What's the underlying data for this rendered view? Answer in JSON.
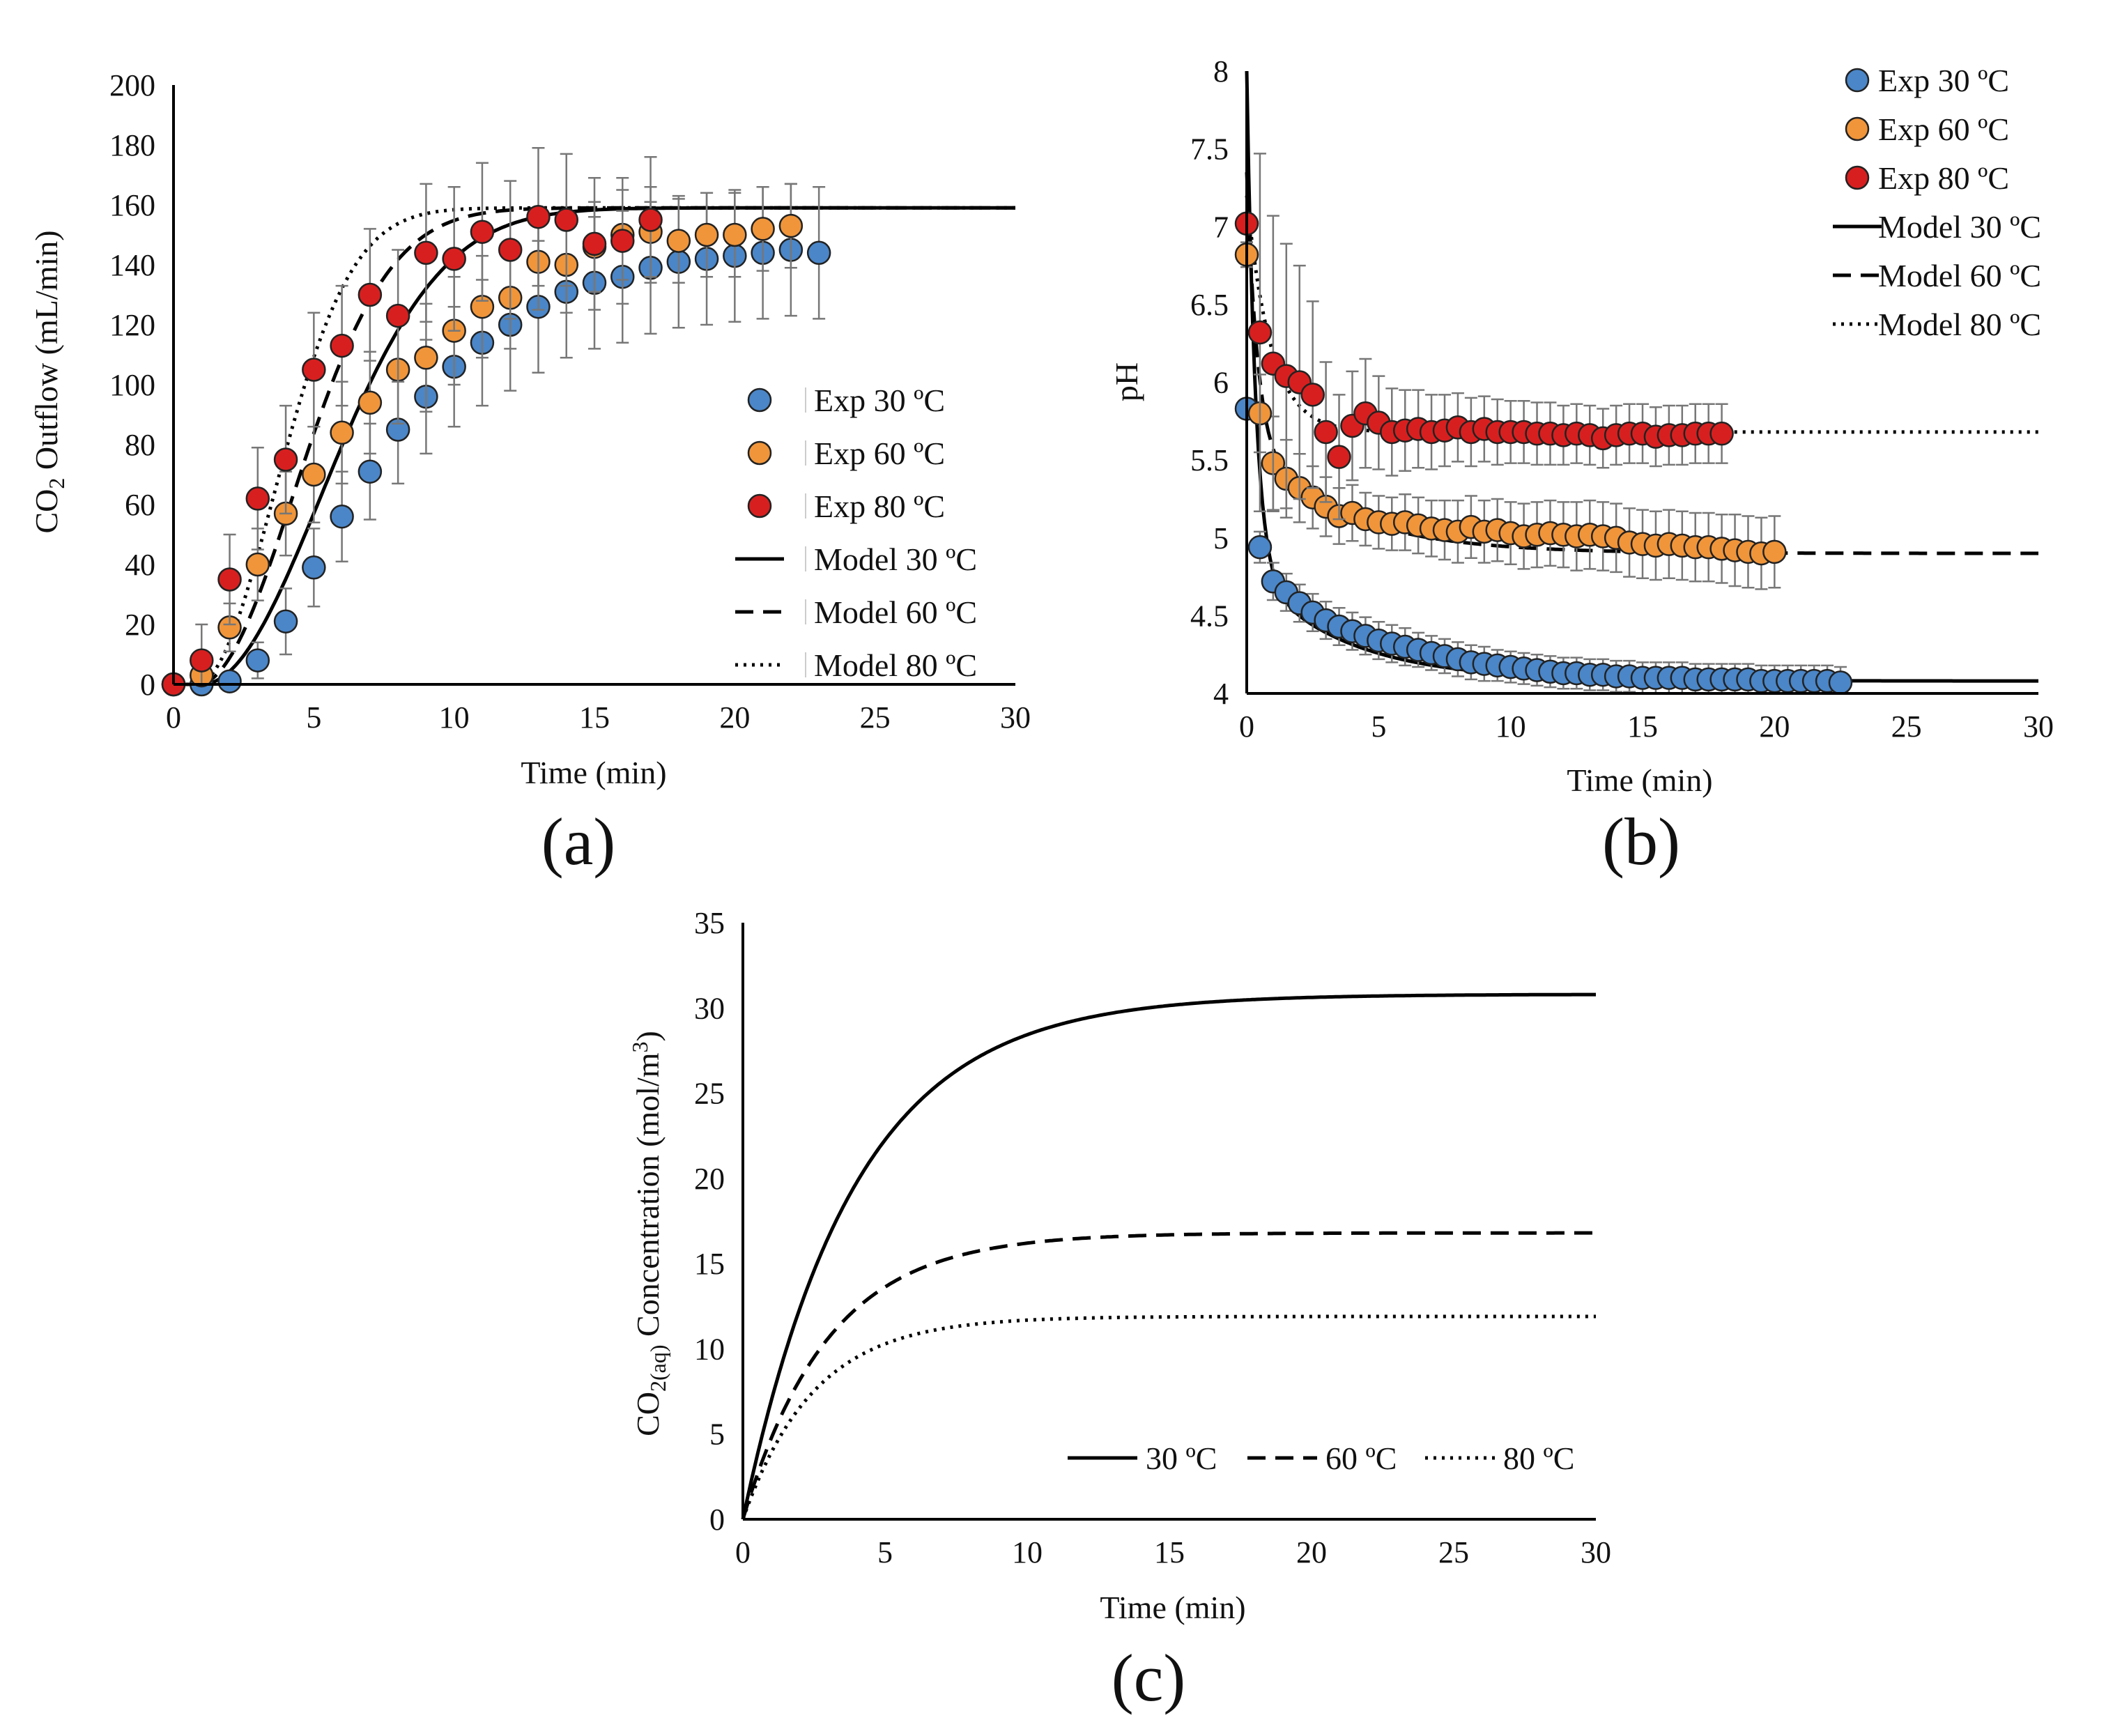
{
  "figure": {
    "panels": [
      "(a)",
      "(b)",
      "(c)"
    ]
  },
  "colors": {
    "exp30": "#4a86c8",
    "exp60": "#f0953a",
    "exp80": "#d81f1f",
    "marker_edge": "#222222",
    "model": "#000000",
    "error_bar": "#777777",
    "axis": "#000000"
  },
  "chart_data": [
    {
      "panel": "(a)",
      "type": "scatter",
      "title": "",
      "xlabel": "Time (min)",
      "ylabel_main": "CO",
      "ylabel_sub": "2",
      "ylabel_rest": " Outflow (mL/min)",
      "xlim": [
        0,
        30
      ],
      "ylim": [
        0,
        200
      ],
      "xticks": [
        "0",
        "5",
        "10",
        "15",
        "20",
        "25",
        "30"
      ],
      "yticks": [
        "0",
        "20",
        "40",
        "60",
        "80",
        "100",
        "120",
        "140",
        "160",
        "180",
        "200"
      ],
      "legend_position": "center-right",
      "series": [
        {
          "name": "Exp 30 ºC",
          "kind": "exp",
          "color_key": "exp30",
          "x": [
            0,
            1,
            2,
            3,
            4,
            5,
            6,
            7,
            8,
            9,
            10,
            11,
            12,
            13,
            14,
            15,
            16,
            17,
            18,
            19,
            20,
            21,
            22,
            23
          ],
          "y": [
            0,
            0,
            1,
            8,
            21,
            39,
            56,
            71,
            85,
            96,
            106,
            114,
            120,
            126,
            131,
            134,
            136,
            139,
            141,
            142,
            143,
            144,
            145,
            144
          ],
          "err": [
            0,
            2,
            3,
            6,
            11,
            13,
            15,
            16,
            18,
            19,
            20,
            21,
            22,
            22,
            22,
            22,
            22,
            22,
            22,
            22,
            22,
            22,
            22,
            22
          ]
        },
        {
          "name": "Exp 60 ºC",
          "kind": "exp",
          "color_key": "exp60",
          "x": [
            0,
            1,
            2,
            3,
            4,
            5,
            6,
            7,
            8,
            9,
            10,
            11,
            12,
            13,
            14,
            15,
            16,
            17,
            18,
            19,
            20,
            21,
            22
          ],
          "y": [
            0,
            3,
            19,
            40,
            57,
            70,
            84,
            94,
            105,
            109,
            118,
            126,
            129,
            141,
            140,
            146,
            150,
            151,
            148,
            150,
            150,
            152,
            153
          ],
          "err": [
            0,
            3,
            8,
            12,
            14,
            16,
            17,
            17,
            18,
            18,
            18,
            17,
            17,
            16,
            16,
            15,
            15,
            15,
            14,
            14,
            14,
            14,
            14
          ]
        },
        {
          "name": "Exp 80 ºC",
          "kind": "exp",
          "color_key": "exp80",
          "x": [
            0,
            1,
            2,
            3,
            4,
            5,
            6,
            7,
            8,
            9,
            10,
            11,
            12,
            13,
            14,
            15,
            16,
            17
          ],
          "y": [
            0,
            8,
            35,
            62,
            75,
            105,
            113,
            130,
            123,
            144,
            142,
            151,
            145,
            156,
            155,
            147,
            148,
            155
          ],
          "err": [
            0,
            12,
            15,
            17,
            18,
            19,
            20,
            22,
            22,
            23,
            24,
            23,
            23,
            23,
            22,
            22,
            21,
            21
          ]
        },
        {
          "name": "Model 30 ºC",
          "kind": "model",
          "dash": "solid",
          "model": "sigmoid",
          "params": {
            "Ymax": 159,
            "t0": 1.0,
            "tau": 6.0
          }
        },
        {
          "name": "Model 60 ºC",
          "kind": "model",
          "dash": "dashed",
          "model": "sigmoid",
          "params": {
            "Ymax": 159,
            "t0": 0.85,
            "tau": 4.8
          }
        },
        {
          "name": "Model 80 ºC",
          "kind": "model",
          "dash": "dotted",
          "model": "sigmoid",
          "params": {
            "Ymax": 159,
            "t0": 0.8,
            "tau": 3.9
          }
        }
      ]
    },
    {
      "panel": "(b)",
      "type": "scatter",
      "title": "",
      "xlabel": "Time (min)",
      "ylabel": "pH",
      "xlim": [
        0,
        30
      ],
      "ylim": [
        4,
        8
      ],
      "xticks": [
        "0",
        "5",
        "10",
        "15",
        "20",
        "25",
        "30"
      ],
      "yticks": [
        "4",
        "4.5",
        "5",
        "5.5",
        "6",
        "6.5",
        "7",
        "7.5",
        "8"
      ],
      "legend_position": "top-right",
      "series": [
        {
          "name": "Exp 30 ºC",
          "kind": "exp",
          "color_key": "exp30",
          "x": [
            0.0,
            0.5,
            1.0,
            1.5,
            2.0,
            2.5,
            3.0,
            3.5,
            4.0,
            4.5,
            5.0,
            5.5,
            6.0,
            6.5,
            7.0,
            7.5,
            8.0,
            8.5,
            9.0,
            9.5,
            10.0,
            10.5,
            11.0,
            11.5,
            12.0,
            12.5,
            13.0,
            13.5,
            14.0,
            14.5,
            15.0,
            15.5,
            16.0,
            16.5,
            17.0,
            17.5,
            18.0,
            18.5,
            19.0,
            19.5,
            20.0,
            20.5,
            21.0,
            21.5,
            22.0,
            22.5
          ],
          "y": [
            5.83,
            4.94,
            4.72,
            4.65,
            4.58,
            4.52,
            4.47,
            4.43,
            4.4,
            4.37,
            4.34,
            4.32,
            4.3,
            4.28,
            4.26,
            4.24,
            4.22,
            4.2,
            4.19,
            4.18,
            4.17,
            4.16,
            4.15,
            4.14,
            4.13,
            4.13,
            4.12,
            4.12,
            4.11,
            4.11,
            4.1,
            4.1,
            4.1,
            4.1,
            4.09,
            4.09,
            4.09,
            4.09,
            4.09,
            4.08,
            4.08,
            4.08,
            4.08,
            4.08,
            4.08,
            4.07
          ],
          "err": [
            0.05,
            0.1,
            0.12,
            0.12,
            0.12,
            0.12,
            0.12,
            0.12,
            0.12,
            0.12,
            0.12,
            0.12,
            0.12,
            0.11,
            0.11,
            0.11,
            0.11,
            0.11,
            0.11,
            0.1,
            0.1,
            0.1,
            0.1,
            0.1,
            0.1,
            0.1,
            0.1,
            0.1,
            0.1,
            0.1,
            0.1,
            0.1,
            0.1,
            0.1,
            0.1,
            0.1,
            0.1,
            0.1,
            0.1,
            0.1,
            0.1,
            0.1,
            0.1,
            0.1,
            0.1,
            0.1
          ]
        },
        {
          "name": "Exp 60 ºC",
          "kind": "exp",
          "color_key": "exp60",
          "x": [
            0.0,
            0.5,
            1.0,
            1.5,
            2.0,
            2.5,
            3.0,
            3.5,
            4.0,
            4.5,
            5.0,
            5.5,
            6.0,
            6.5,
            7.0,
            7.5,
            8.0,
            8.5,
            9.0,
            9.5,
            10.0,
            10.5,
            11.0,
            11.5,
            12.0,
            12.5,
            13.0,
            13.5,
            14.0,
            14.5,
            15.0,
            15.5,
            16.0,
            16.5,
            17.0,
            17.5,
            18.0,
            18.5,
            19.0,
            19.5,
            20.0
          ],
          "y": [
            6.82,
            5.8,
            5.48,
            5.38,
            5.32,
            5.26,
            5.2,
            5.14,
            5.16,
            5.12,
            5.1,
            5.09,
            5.1,
            5.08,
            5.06,
            5.05,
            5.04,
            5.07,
            5.04,
            5.05,
            5.03,
            5.01,
            5.02,
            5.03,
            5.02,
            5.01,
            5.02,
            5.01,
            5.0,
            4.97,
            4.96,
            4.95,
            4.96,
            4.95,
            4.94,
            4.94,
            4.93,
            4.92,
            4.91,
            4.9,
            4.91
          ],
          "err": [
            0.08,
            0.25,
            0.3,
            0.25,
            0.22,
            0.2,
            0.19,
            0.18,
            0.18,
            0.17,
            0.17,
            0.17,
            0.18,
            0.18,
            0.18,
            0.19,
            0.2,
            0.2,
            0.2,
            0.2,
            0.2,
            0.21,
            0.21,
            0.21,
            0.21,
            0.22,
            0.22,
            0.22,
            0.22,
            0.22,
            0.22,
            0.22,
            0.22,
            0.22,
            0.22,
            0.22,
            0.22,
            0.23,
            0.23,
            0.23,
            0.23
          ]
        },
        {
          "name": "Exp 80 ºC",
          "kind": "exp",
          "color_key": "exp80",
          "x": [
            0.0,
            0.5,
            1.0,
            1.5,
            2.0,
            2.5,
            3.0,
            3.5,
            4.0,
            4.5,
            5.0,
            5.5,
            6.0,
            6.5,
            7.0,
            7.5,
            8.0,
            8.5,
            9.0,
            9.5,
            10.0,
            10.5,
            11.0,
            11.5,
            12.0,
            12.5,
            13.0,
            13.5,
            14.0,
            14.5,
            15.0,
            15.5,
            16.0,
            16.5,
            17.0,
            17.5,
            18.0
          ],
          "y": [
            7.02,
            6.32,
            6.12,
            6.04,
            6.0,
            5.92,
            5.68,
            5.52,
            5.72,
            5.8,
            5.74,
            5.68,
            5.69,
            5.7,
            5.68,
            5.69,
            5.71,
            5.68,
            5.7,
            5.68,
            5.68,
            5.68,
            5.67,
            5.67,
            5.66,
            5.67,
            5.66,
            5.64,
            5.66,
            5.67,
            5.67,
            5.65,
            5.66,
            5.66,
            5.67,
            5.67,
            5.67
          ],
          "err": [
            0.05,
            1.15,
            0.95,
            0.85,
            0.75,
            0.6,
            0.45,
            0.4,
            0.35,
            0.35,
            0.3,
            0.28,
            0.26,
            0.25,
            0.24,
            0.23,
            0.22,
            0.22,
            0.21,
            0.21,
            0.2,
            0.2,
            0.2,
            0.2,
            0.19,
            0.19,
            0.19,
            0.19,
            0.19,
            0.19,
            0.19,
            0.19,
            0.19,
            0.19,
            0.19,
            0.19,
            0.19
          ]
        },
        {
          "name": "Model 30 ºC",
          "kind": "model",
          "dash": "solid",
          "model": "decay2",
          "params": {
            "y0": 8.0,
            "yinf": 4.08,
            "A": 0.72,
            "k": 3.0,
            "k2": 0.28
          }
        },
        {
          "name": "Model 60 ºC",
          "kind": "model",
          "dash": "dashed",
          "model": "decay2",
          "params": {
            "y0": 7.35,
            "yinf": 4.9,
            "A": 0.7,
            "k": 2.5,
            "k2": 0.28
          }
        },
        {
          "name": "Model 80 ºC",
          "kind": "model",
          "dash": "dotted",
          "model": "decay1",
          "params": {
            "y0": 7.2,
            "yinf": 5.68,
            "k": 1.1
          }
        }
      ]
    },
    {
      "panel": "(c)",
      "type": "line",
      "title": "",
      "xlabel": "Time (min)",
      "ylabel_main": "CO",
      "ylabel_sub": "2(aq)",
      "ylabel_rest": " Concentration  (mol/m",
      "ylabel_sup": "3",
      "ylabel_end": ")",
      "xlim": [
        0,
        30
      ],
      "ylim": [
        0,
        35
      ],
      "xticks": [
        "0",
        "5",
        "10",
        "15",
        "20",
        "25",
        "30"
      ],
      "yticks": [
        "0",
        "5",
        "10",
        "15",
        "20",
        "25",
        "30",
        "35"
      ],
      "legend_position": "bottom-right",
      "series": [
        {
          "name": "30 ºC",
          "kind": "model",
          "dash": "solid",
          "model": "rise",
          "params": {
            "Cinf": 30.8,
            "tau": 3.9
          }
        },
        {
          "name": "60 ºC",
          "kind": "model",
          "dash": "dashed",
          "model": "rise",
          "params": {
            "Cinf": 16.8,
            "tau": 3.0
          }
        },
        {
          "name": "80 ºC",
          "kind": "model",
          "dash": "dotted",
          "model": "rise",
          "params": {
            "Cinf": 11.9,
            "tau": 2.5
          }
        }
      ]
    }
  ]
}
